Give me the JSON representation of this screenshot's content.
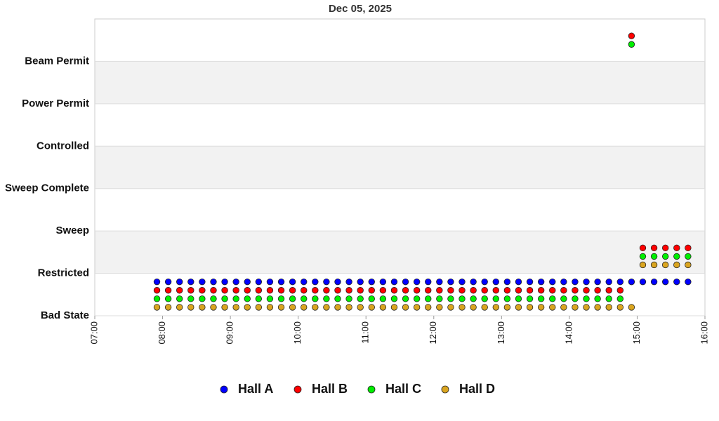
{
  "chart_data": {
    "type": "scatter",
    "title": "Dec 05, 2025",
    "x": [
      "07:55",
      "08:05",
      "08:15",
      "08:25",
      "08:35",
      "08:45",
      "08:55",
      "09:05",
      "09:15",
      "09:25",
      "09:35",
      "09:45",
      "09:55",
      "10:05",
      "10:15",
      "10:25",
      "10:35",
      "10:45",
      "10:55",
      "11:05",
      "11:15",
      "11:25",
      "11:35",
      "11:45",
      "11:55",
      "12:05",
      "12:15",
      "12:25",
      "12:35",
      "12:45",
      "12:55",
      "13:05",
      "13:15",
      "13:25",
      "13:35",
      "13:45",
      "13:55",
      "14:05",
      "14:15",
      "14:25",
      "14:35",
      "14:45",
      "14:55",
      "15:05",
      "15:15",
      "15:25",
      "15:35",
      "15:45"
    ],
    "xlim": [
      "07:00",
      "16:00"
    ],
    "xticks": [
      "07:00",
      "08:00",
      "09:00",
      "10:00",
      "11:00",
      "12:00",
      "13:00",
      "14:00",
      "15:00",
      "16:00"
    ],
    "ylim": [
      0,
      7
    ],
    "yticks": [
      {
        "value": 0,
        "label": "Bad State"
      },
      {
        "value": 1,
        "label": "Restricted"
      },
      {
        "value": 2,
        "label": "Sweep"
      },
      {
        "value": 3,
        "label": "Sweep Complete"
      },
      {
        "value": 4,
        "label": "Controlled"
      },
      {
        "value": 5,
        "label": "Power Permit"
      },
      {
        "value": 6,
        "label": "Beam Permit"
      }
    ],
    "grid": true,
    "legend": "bottom",
    "series": [
      {
        "name": "Hall A",
        "color": "#0000ff",
        "values": [
          0.8,
          0.8,
          0.8,
          0.8,
          0.8,
          0.8,
          0.8,
          0.8,
          0.8,
          0.8,
          0.8,
          0.8,
          0.8,
          0.8,
          0.8,
          0.8,
          0.8,
          0.8,
          0.8,
          0.8,
          0.8,
          0.8,
          0.8,
          0.8,
          0.8,
          0.8,
          0.8,
          0.8,
          0.8,
          0.8,
          0.8,
          0.8,
          0.8,
          0.8,
          0.8,
          0.8,
          0.8,
          0.8,
          0.8,
          0.8,
          0.8,
          0.8,
          0.8,
          0.8,
          0.8,
          0.8,
          0.8,
          0.8
        ]
      },
      {
        "name": "Hall B",
        "color": "#ff0000",
        "values": [
          0.6,
          0.6,
          0.6,
          0.6,
          0.6,
          0.6,
          0.6,
          0.6,
          0.6,
          0.6,
          0.6,
          0.6,
          0.6,
          0.6,
          0.6,
          0.6,
          0.6,
          0.6,
          0.6,
          0.6,
          0.6,
          0.6,
          0.6,
          0.6,
          0.6,
          0.6,
          0.6,
          0.6,
          0.6,
          0.6,
          0.6,
          0.6,
          0.6,
          0.6,
          0.6,
          0.6,
          0.6,
          0.6,
          0.6,
          0.6,
          0.6,
          0.6,
          6.6,
          1.6,
          1.6,
          1.6,
          1.6,
          1.6
        ]
      },
      {
        "name": "Hall C",
        "color": "#00ee00",
        "values": [
          0.4,
          0.4,
          0.4,
          0.4,
          0.4,
          0.4,
          0.4,
          0.4,
          0.4,
          0.4,
          0.4,
          0.4,
          0.4,
          0.4,
          0.4,
          0.4,
          0.4,
          0.4,
          0.4,
          0.4,
          0.4,
          0.4,
          0.4,
          0.4,
          0.4,
          0.4,
          0.4,
          0.4,
          0.4,
          0.4,
          0.4,
          0.4,
          0.4,
          0.4,
          0.4,
          0.4,
          0.4,
          0.4,
          0.4,
          0.4,
          0.4,
          0.4,
          6.4,
          1.4,
          1.4,
          1.4,
          1.4,
          1.4
        ]
      },
      {
        "name": "Hall D",
        "color": "#daa520",
        "values": [
          0.2,
          0.2,
          0.2,
          0.2,
          0.2,
          0.2,
          0.2,
          0.2,
          0.2,
          0.2,
          0.2,
          0.2,
          0.2,
          0.2,
          0.2,
          0.2,
          0.2,
          0.2,
          0.2,
          0.2,
          0.2,
          0.2,
          0.2,
          0.2,
          0.2,
          0.2,
          0.2,
          0.2,
          0.2,
          0.2,
          0.2,
          0.2,
          0.2,
          0.2,
          0.2,
          0.2,
          0.2,
          0.2,
          0.2,
          0.2,
          0.2,
          0.2,
          0.2,
          1.2,
          1.2,
          1.2,
          1.2,
          1.2
        ]
      }
    ]
  }
}
